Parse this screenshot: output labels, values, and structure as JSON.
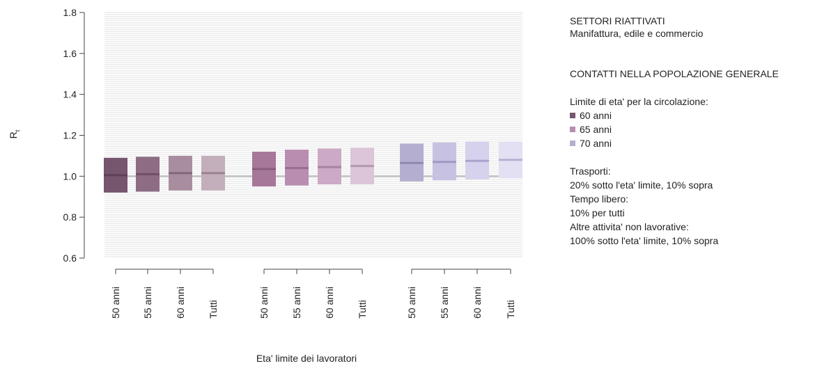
{
  "chart_data": {
    "type": "boxplot",
    "xlabel": "Eta' limite dei lavoratori",
    "ylabel": "R",
    "ylabel_subscript": "t",
    "ylim": [
      0.6,
      1.8
    ],
    "yticks": [
      "0.6",
      "0.8",
      "1.0",
      "1.2",
      "1.4",
      "1.6",
      "1.8"
    ],
    "reference_line": 1.0,
    "grid": "horizontal fine lines",
    "groups": [
      {
        "name": "60 anni",
        "boxes": [
          {
            "label": "50 anni",
            "low": 0.92,
            "high": 1.09,
            "median": 1.005,
            "color": "#75566e",
            "median_color": "#5d4158"
          },
          {
            "label": "55 anni",
            "low": 0.925,
            "high": 1.095,
            "median": 1.01,
            "color": "#8e6c84",
            "median_color": "#6e5068"
          },
          {
            "label": "60 anni",
            "low": 0.93,
            "high": 1.1,
            "median": 1.015,
            "color": "#a88d9f",
            "median_color": "#846679"
          },
          {
            "label": "Tutti",
            "low": 0.93,
            "high": 1.1,
            "median": 1.015,
            "color": "#c3aebb",
            "median_color": "#9a8291"
          }
        ]
      },
      {
        "name": "65 anni",
        "boxes": [
          {
            "label": "50 anni",
            "low": 0.95,
            "high": 1.12,
            "median": 1.035,
            "color": "#a67799",
            "median_color": "#8a5c7e"
          },
          {
            "label": "55 anni",
            "low": 0.955,
            "high": 1.13,
            "median": 1.04,
            "color": "#b88daf",
            "median_color": "#976f8f"
          },
          {
            "label": "60 anni",
            "low": 0.96,
            "high": 1.135,
            "median": 1.045,
            "color": "#cca9c6",
            "median_color": "#a683a0"
          },
          {
            "label": "Tutti",
            "low": 0.96,
            "high": 1.14,
            "median": 1.05,
            "color": "#dcc5d8",
            "median_color": "#b399ae"
          }
        ]
      },
      {
        "name": "70 anni",
        "boxes": [
          {
            "label": "50 anni",
            "low": 0.975,
            "high": 1.16,
            "median": 1.065,
            "color": "#b4aed1",
            "median_color": "#8f88b0"
          },
          {
            "label": "55 anni",
            "low": 0.98,
            "high": 1.165,
            "median": 1.07,
            "color": "#c7c1e2",
            "median_color": "#9f98c1"
          },
          {
            "label": "60 anni",
            "low": 0.985,
            "high": 1.17,
            "median": 1.075,
            "color": "#d6d1ec",
            "median_color": "#aaa4cc"
          },
          {
            "label": "Tutti",
            "low": 0.99,
            "high": 1.17,
            "median": 1.08,
            "color": "#e3e0f3",
            "median_color": "#b5b0d4"
          }
        ]
      }
    ]
  },
  "legend": {
    "title1": "SETTORI RIATTIVATI",
    "subtitle1": "Manifattura, edile e commercio",
    "title2": "CONTATTI NELLA POPOLAZIONE GENERALE",
    "age_limit_label": "Limite di eta' per la circolazione:",
    "items": [
      {
        "label": "60 anni",
        "color": "#75566e"
      },
      {
        "label": "65 anni",
        "color": "#b88daf"
      },
      {
        "label": "70 anni",
        "color": "#b4aed1"
      }
    ],
    "notes": [
      "Trasporti:",
      "20% sotto l'eta' limite, 10% sopra",
      "Tempo libero:",
      "10% per tutti",
      "Altre attivita' non lavorative:",
      "100% sotto l'eta' limite, 10% sopra"
    ]
  }
}
